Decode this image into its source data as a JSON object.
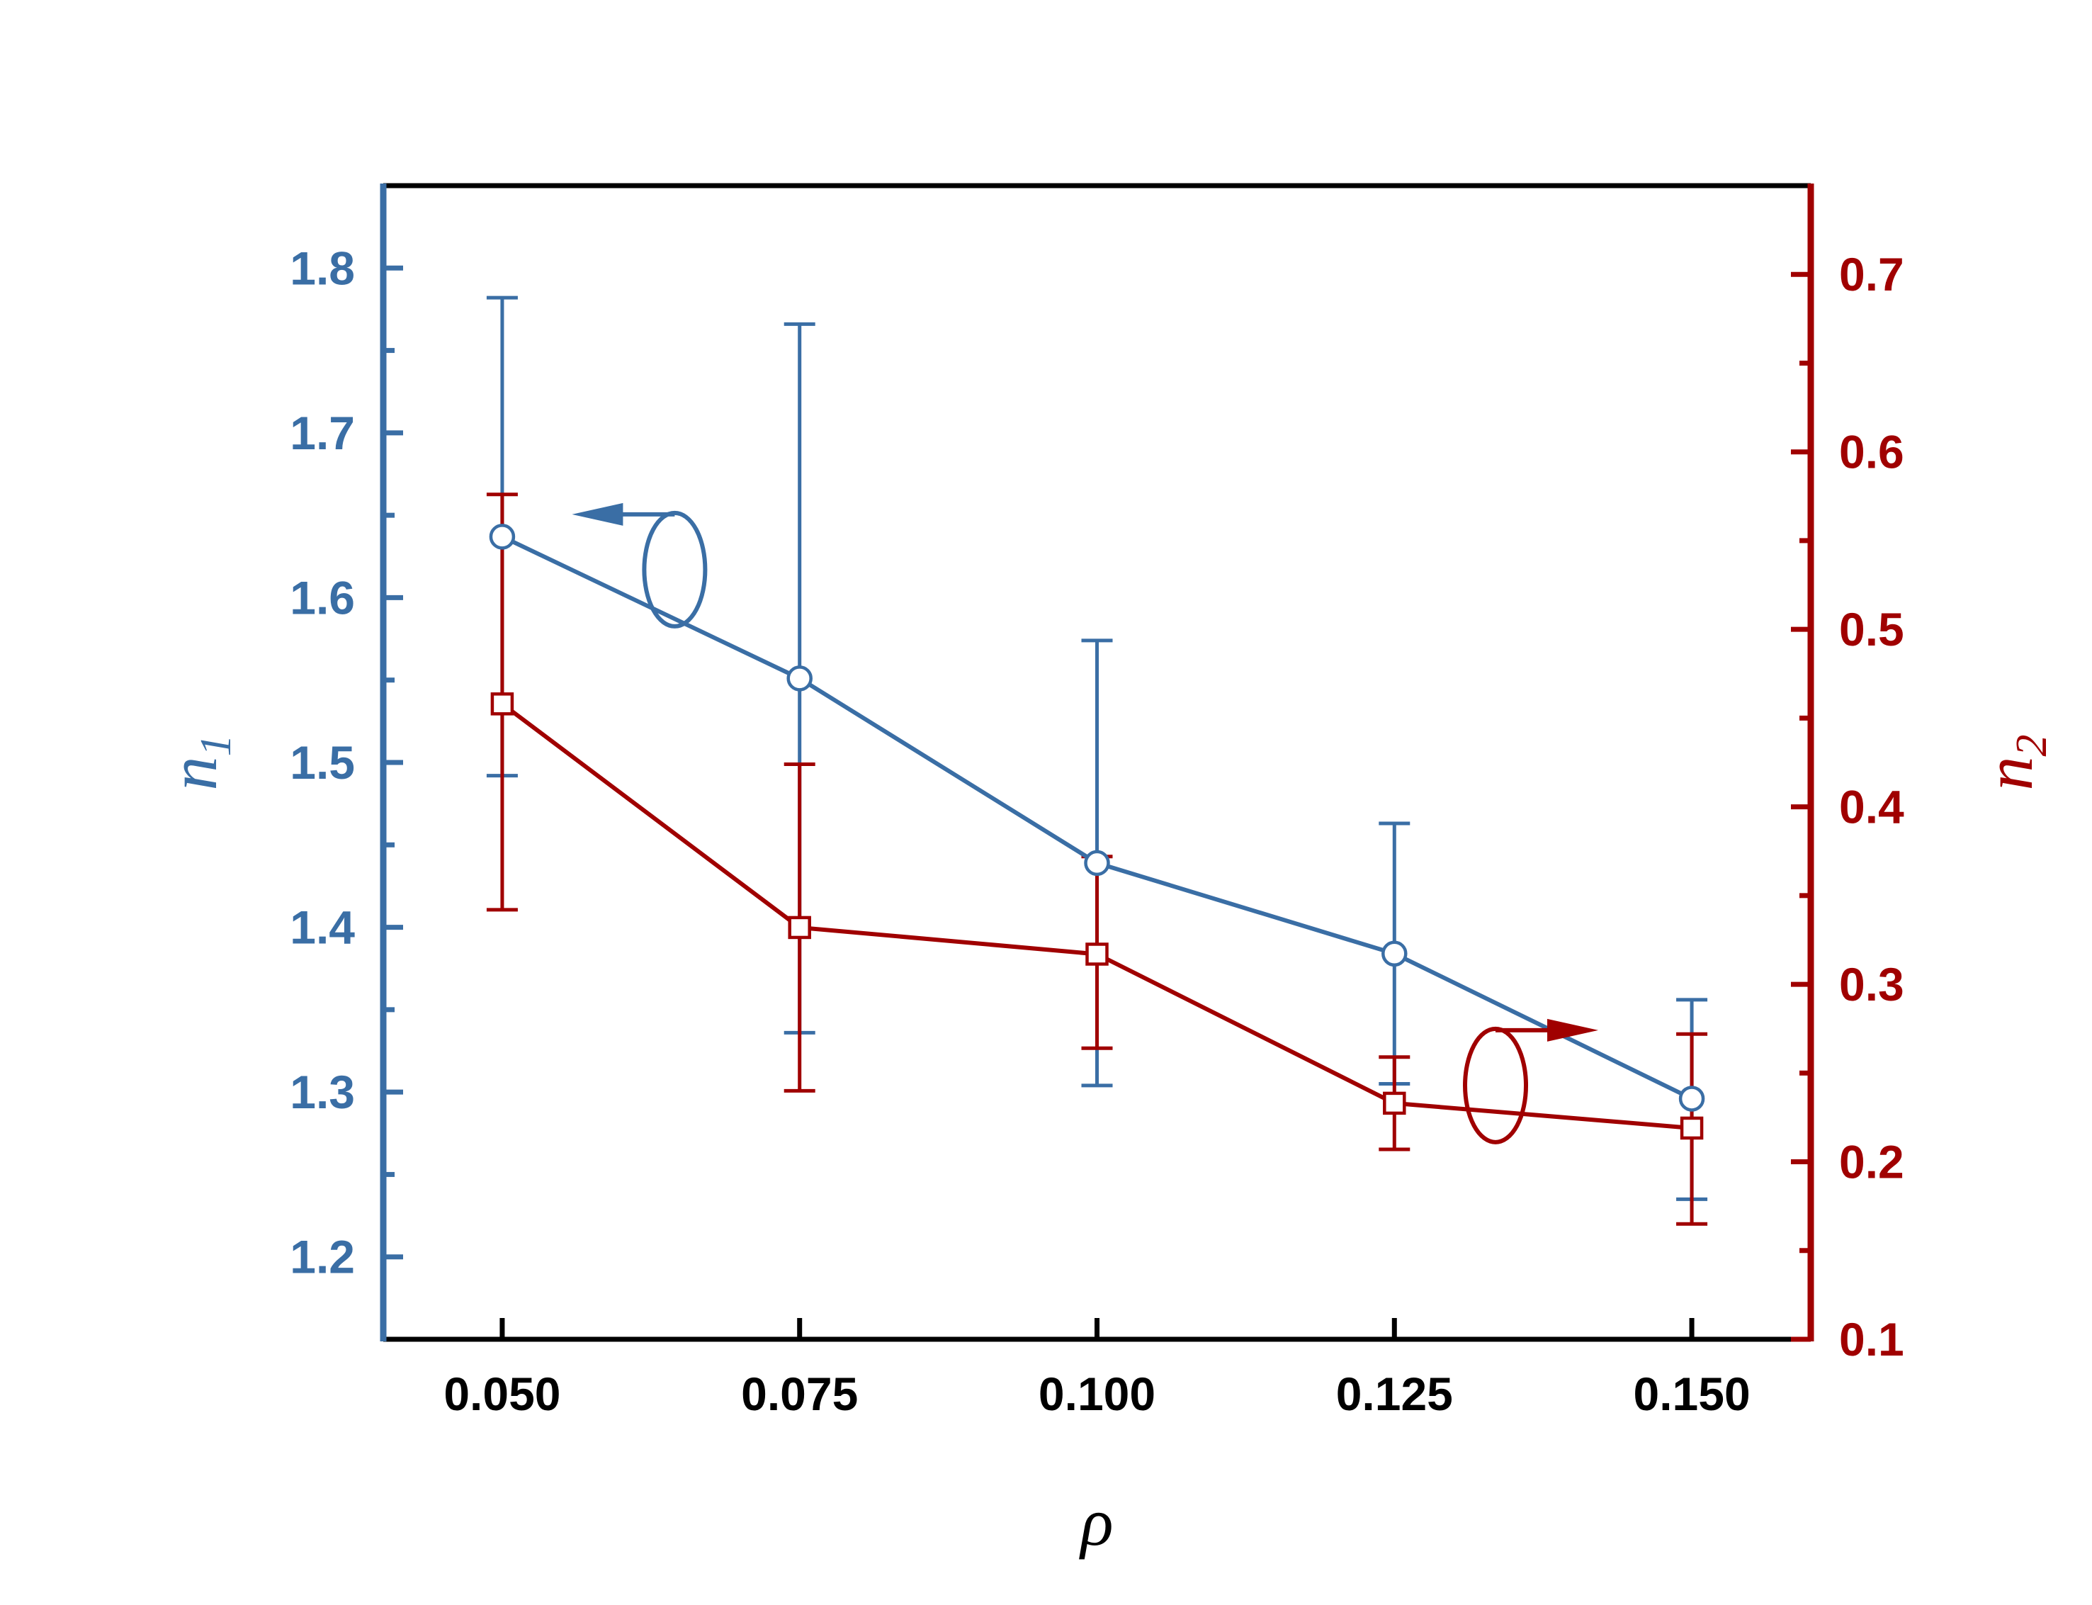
{
  "chart_data": {
    "type": "line",
    "title": "",
    "xlabel": "ρ",
    "ylabel_left": {
      "main": "n",
      "sub": "1"
    },
    "ylabel_right": {
      "main": "n",
      "sub": "2"
    },
    "xlim": [
      0.04,
      0.16
    ],
    "ylim_left": [
      1.15,
      1.85
    ],
    "ylim_right": [
      0.1,
      0.75
    ],
    "x": [
      0.05,
      0.075,
      0.1,
      0.125,
      0.15
    ],
    "x_tick_labels": [
      "0.050",
      "0.075",
      "0.100",
      "0.125",
      "0.150"
    ],
    "y_left_ticks": [
      1.2,
      1.3,
      1.4,
      1.5,
      1.6,
      1.7,
      1.8
    ],
    "y_left_tick_labels": [
      "1.2",
      "1.3",
      "1.4",
      "1.5",
      "1.6",
      "1.7",
      "1.8"
    ],
    "y_right_ticks": [
      0.1,
      0.2,
      0.3,
      0.4,
      0.5,
      0.6,
      0.7
    ],
    "y_right_tick_labels": [
      "0.1",
      "0.2",
      "0.3",
      "0.4",
      "0.5",
      "0.6",
      "0.7"
    ],
    "grid": false,
    "legend": "none",
    "series": [
      {
        "axis": "left",
        "marker": "circle",
        "color": "#3a6ea5",
        "values": [
          1.637,
          1.551,
          1.439,
          1.384,
          1.296
        ],
        "err_low": [
          1.492,
          1.336,
          1.304,
          1.305,
          1.235
        ],
        "err_high": [
          1.782,
          1.766,
          1.574,
          1.463,
          1.356
        ]
      },
      {
        "axis": "right",
        "marker": "square",
        "color": "#a00000",
        "values": [
          0.458,
          0.332,
          0.317,
          0.233,
          0.219
        ],
        "err_low": [
          0.342,
          0.24,
          0.264,
          0.207,
          0.165
        ],
        "err_high": [
          0.576,
          0.424,
          0.372,
          0.259,
          0.272
        ]
      }
    ],
    "annotations": [
      {
        "type": "axis-indicator",
        "series": 0,
        "points_to": "left",
        "at": {
          "x": 0.0645,
          "y_left": 1.617
        }
      },
      {
        "type": "axis-indicator",
        "series": 1,
        "points_to": "right",
        "at": {
          "x": 0.1335,
          "y_right": 0.243
        }
      }
    ]
  },
  "colors": {
    "left_axis": "#3a6ea5",
    "right_axis": "#a00000",
    "frame": "#000000",
    "background": "#ffffff"
  }
}
